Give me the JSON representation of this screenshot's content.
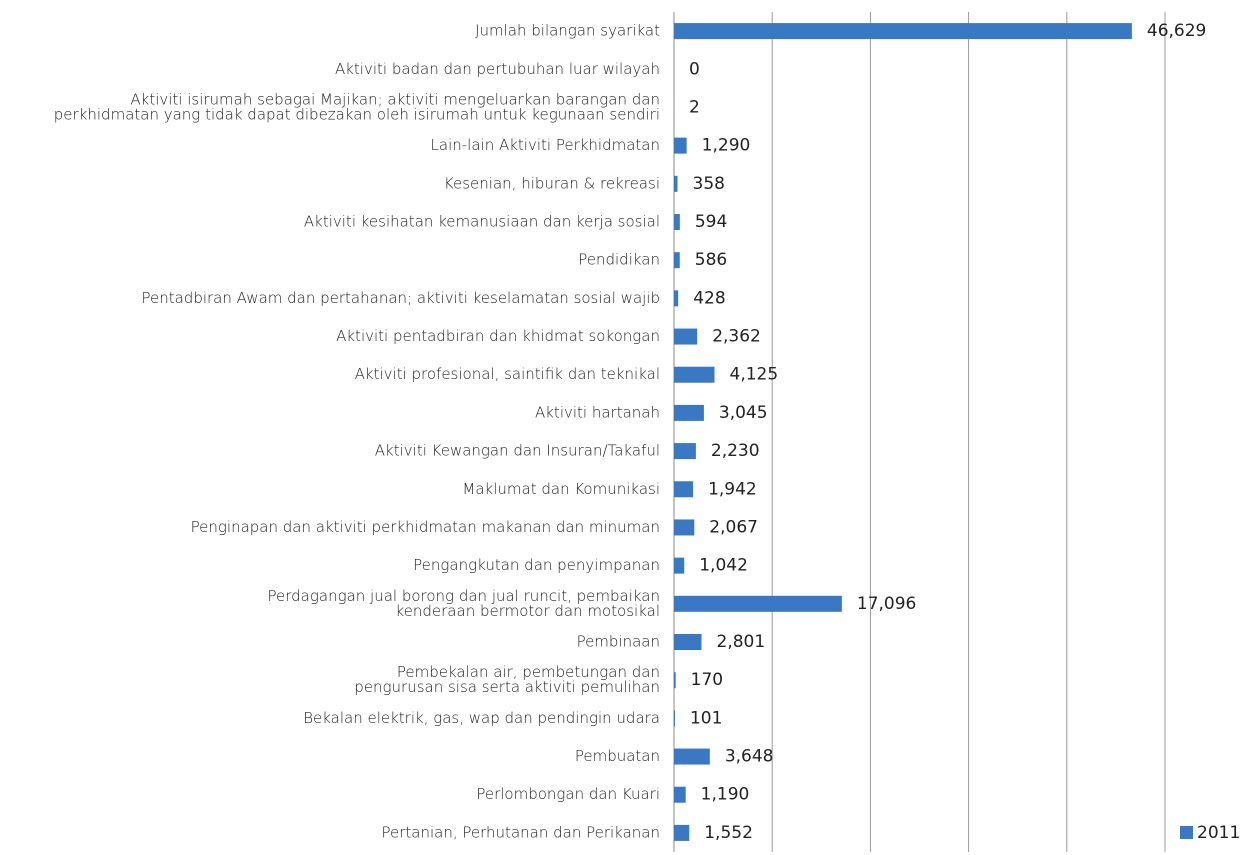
{
  "chart_data": {
    "type": "barh",
    "categories": [
      "Jumlah bilangan syarikat",
      "Aktiviti badan dan pertubuhan luar wilayah",
      [
        "Aktiviti isirumah sebagai Majikan; aktiviti mengeluarkan barangan dan",
        "perkhidmatan yang tidak dapat dibezakan oleh isirumah untuk kegunaan sendiri"
      ],
      "Lain-lain Aktiviti Perkhidmatan",
      "Kesenian, hiburan & rekreasi",
      "Aktiviti kesihatan kemanusiaan dan kerja sosial",
      "Pendidikan",
      "Pentadbiran Awam dan pertahanan; aktiviti keselamatan sosial wajib",
      "Aktiviti pentadbiran dan khidmat sokongan",
      "Aktiviti profesional, saintifik dan teknikal",
      "Aktiviti hartanah",
      "Aktiviti Kewangan dan Insuran/Takaful",
      "Maklumat dan Komunikasi",
      "Penginapan dan aktiviti perkhidmatan makanan dan minuman",
      "Pengangkutan dan penyimpanan",
      [
        "Perdagangan jual borong dan jual runcit, pembaikan",
        "kenderaan bermotor dan motosikal"
      ],
      "Pembinaan",
      [
        "Pembekalan air, pembetungan dan",
        "pengurusan sisa serta aktiviti pemulihan"
      ],
      "Bekalan elektrik, gas, wap dan pendingin udara",
      "Pembuatan",
      "Perlombongan dan Kuari",
      "Pertanian, Perhutanan dan Perikanan"
    ],
    "series": [
      {
        "name": "2011",
        "color": "#3a78c3",
        "values": [
          46629,
          0,
          2,
          1290,
          358,
          594,
          586,
          428,
          2362,
          4125,
          3045,
          2230,
          1942,
          2067,
          1042,
          17096,
          2801,
          170,
          101,
          3648,
          1190,
          1552
        ],
        "value_labels": [
          "46,629",
          "0",
          "2",
          "1,290",
          "358",
          "594",
          "586",
          "428",
          "2,362",
          "4,125",
          "3,045",
          "2,230",
          "1,942",
          "2,067",
          "1,042",
          "17,096",
          "2,801",
          "170",
          "101",
          "3,648",
          "1,190",
          "1,552"
        ]
      }
    ],
    "xlim": [
      0,
      50000
    ],
    "xticks": [
      0,
      10000,
      20000,
      30000,
      40000,
      50000
    ],
    "grid": true,
    "legend": "bottom-right"
  }
}
